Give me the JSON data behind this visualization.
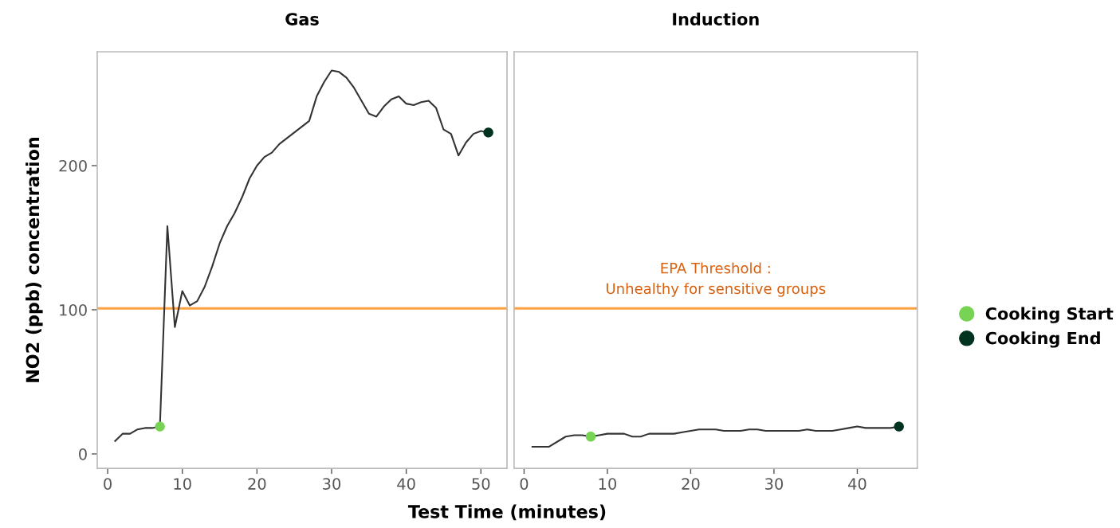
{
  "chart_data": [
    {
      "type": "line",
      "title": "Gas",
      "xlabel": "Test Time (minutes)",
      "ylabel": "NO2 (ppb) concentration",
      "xlim": [
        -1.4,
        53.5
      ],
      "xticks": [
        0,
        10,
        20,
        30,
        40,
        50
      ],
      "ylim": [
        -10,
        279
      ],
      "yticks": [
        0,
        100,
        200
      ],
      "grid": false,
      "tick_labels": "xy",
      "legend": "right",
      "series": [
        {
          "color": "#333333",
          "x": [
            1,
            2,
            3,
            4,
            5,
            6,
            7,
            8,
            9,
            10,
            11,
            12,
            13,
            14,
            15,
            16,
            17,
            18,
            19,
            20,
            21,
            22,
            23,
            24,
            25,
            26,
            27,
            28,
            29,
            30,
            31,
            32,
            33,
            34,
            35,
            36,
            37,
            38,
            39,
            40,
            41,
            42,
            43,
            44,
            45,
            46,
            47,
            48,
            49,
            50,
            51
          ],
          "values": [
            9,
            14,
            14,
            17,
            18,
            18,
            19,
            158,
            88,
            113,
            103,
            106,
            116,
            130,
            146,
            158,
            167,
            178,
            191,
            200,
            206,
            209,
            215,
            219,
            223,
            227,
            231,
            248,
            258,
            266,
            265,
            261,
            254,
            245,
            236,
            234,
            241,
            246,
            248,
            243,
            242,
            244,
            245,
            240,
            225,
            222,
            207,
            216,
            222,
            224,
            223
          ]
        },
        {
          "type": "scatter",
          "name": "Cooking Start",
          "color": "#77d353",
          "x": [
            7
          ],
          "values": [
            19
          ]
        },
        {
          "type": "scatter",
          "name": "Cooking End",
          "color": "#00331f",
          "x": [
            51
          ],
          "values": [
            223
          ]
        }
      ],
      "ref_lines": [
        {
          "axis": "y",
          "value": 101,
          "color": "#ffa040"
        }
      ]
    },
    {
      "type": "line",
      "title": "Induction",
      "xlim": [
        -1.2,
        47.2
      ],
      "xticks": [
        0,
        10,
        20,
        30,
        40
      ],
      "ylim": [
        -10,
        279
      ],
      "yticks": [
        0,
        100,
        200
      ],
      "grid": false,
      "tick_labels": "x",
      "series": [
        {
          "color": "#333333",
          "x": [
            1,
            3,
            5,
            6,
            7,
            8,
            9,
            10,
            11,
            12,
            13,
            14,
            15,
            16,
            17,
            18,
            19,
            20,
            21,
            22,
            23,
            24,
            25,
            26,
            27,
            28,
            29,
            30,
            31,
            32,
            33,
            34,
            35,
            36,
            37,
            38,
            39,
            40,
            41,
            42,
            43,
            44,
            45
          ],
          "values": [
            5,
            5,
            12,
            13,
            13,
            12,
            13,
            14,
            14,
            14,
            12,
            12,
            14,
            14,
            14,
            14,
            15,
            16,
            17,
            17,
            17,
            16,
            16,
            16,
            17,
            17,
            16,
            16,
            16,
            16,
            16,
            17,
            16,
            16,
            16,
            17,
            18,
            19,
            18,
            18,
            18,
            18,
            19
          ]
        },
        {
          "type": "scatter",
          "color": "#77d353",
          "x": [
            8
          ],
          "values": [
            12
          ]
        },
        {
          "type": "scatter",
          "color": "#00331f",
          "x": [
            45
          ],
          "values": [
            19
          ]
        }
      ],
      "ref_lines": [
        {
          "axis": "y",
          "value": 101,
          "color": "#ffa040",
          "label": "EPA Threshold :\nUnhealthy for sensitive groups"
        }
      ]
    }
  ]
}
